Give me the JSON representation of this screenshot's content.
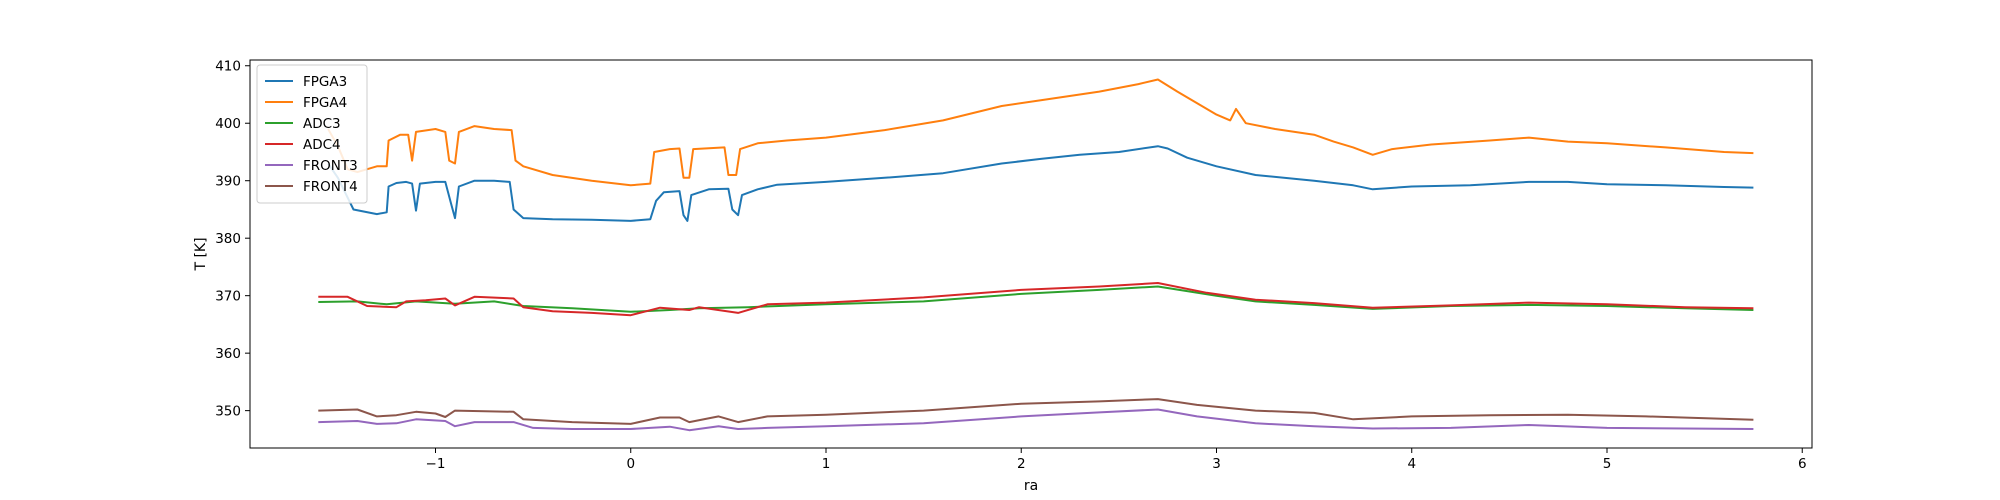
{
  "chart_data": {
    "type": "line",
    "title": "",
    "xlabel": "ra",
    "ylabel": "T [K]",
    "xlim": [
      -1.95,
      6.05
    ],
    "ylim": [
      343.5,
      411.0
    ],
    "xticks": [
      -1,
      0,
      1,
      2,
      3,
      4,
      5,
      6
    ],
    "xtick_labels": [
      "−1",
      "0",
      "1",
      "2",
      "3",
      "4",
      "5",
      "6"
    ],
    "yticks": [
      350,
      360,
      370,
      380,
      390,
      400,
      410
    ],
    "ytick_labels": [
      "350",
      "360",
      "370",
      "380",
      "390",
      "400",
      "410"
    ],
    "grid": false,
    "legend_position": "top-left",
    "series": [
      {
        "name": "FPGA3",
        "color": "#1f77b4",
        "points": [
          [
            -1.55,
            393.0
          ],
          [
            -1.5,
            390.5
          ],
          [
            -1.42,
            385.0
          ],
          [
            -1.3,
            384.2
          ],
          [
            -1.25,
            384.5
          ],
          [
            -1.24,
            389.0
          ],
          [
            -1.2,
            389.6
          ],
          [
            -1.15,
            389.8
          ],
          [
            -1.12,
            389.5
          ],
          [
            -1.1,
            384.8
          ],
          [
            -1.08,
            389.5
          ],
          [
            -1.0,
            389.8
          ],
          [
            -0.95,
            389.8
          ],
          [
            -0.92,
            386.0
          ],
          [
            -0.9,
            383.5
          ],
          [
            -0.88,
            389.0
          ],
          [
            -0.8,
            390.0
          ],
          [
            -0.7,
            390.0
          ],
          [
            -0.62,
            389.8
          ],
          [
            -0.6,
            385.0
          ],
          [
            -0.55,
            383.5
          ],
          [
            -0.4,
            383.3
          ],
          [
            -0.2,
            383.2
          ],
          [
            0.0,
            383.0
          ],
          [
            0.1,
            383.3
          ],
          [
            0.13,
            386.5
          ],
          [
            0.17,
            388.0
          ],
          [
            0.25,
            388.2
          ],
          [
            0.27,
            384.0
          ],
          [
            0.29,
            383.0
          ],
          [
            0.31,
            387.5
          ],
          [
            0.4,
            388.5
          ],
          [
            0.5,
            388.6
          ],
          [
            0.52,
            385.0
          ],
          [
            0.55,
            384.0
          ],
          [
            0.57,
            387.5
          ],
          [
            0.65,
            388.5
          ],
          [
            0.75,
            389.3
          ],
          [
            1.0,
            389.8
          ],
          [
            1.3,
            390.5
          ],
          [
            1.6,
            391.3
          ],
          [
            1.9,
            393.0
          ],
          [
            2.1,
            393.8
          ],
          [
            2.3,
            394.5
          ],
          [
            2.5,
            395.0
          ],
          [
            2.7,
            396.0
          ],
          [
            2.75,
            395.6
          ],
          [
            2.85,
            394.0
          ],
          [
            3.0,
            392.5
          ],
          [
            3.2,
            391.0
          ],
          [
            3.5,
            390.0
          ],
          [
            3.7,
            389.2
          ],
          [
            3.8,
            388.5
          ],
          [
            4.0,
            389.0
          ],
          [
            4.3,
            389.2
          ],
          [
            4.6,
            389.8
          ],
          [
            4.8,
            389.8
          ],
          [
            5.0,
            389.4
          ],
          [
            5.3,
            389.2
          ],
          [
            5.6,
            388.9
          ],
          [
            5.75,
            388.8
          ]
        ]
      },
      {
        "name": "FPGA4",
        "color": "#ff7f0e",
        "points": [
          [
            -1.55,
            399.0
          ],
          [
            -1.5,
            396.0
          ],
          [
            -1.45,
            392.0
          ],
          [
            -1.4,
            391.5
          ],
          [
            -1.3,
            392.5
          ],
          [
            -1.25,
            392.5
          ],
          [
            -1.24,
            397.0
          ],
          [
            -1.18,
            398.0
          ],
          [
            -1.14,
            398.0
          ],
          [
            -1.12,
            393.5
          ],
          [
            -1.1,
            398.5
          ],
          [
            -1.0,
            399.0
          ],
          [
            -0.95,
            398.5
          ],
          [
            -0.93,
            393.5
          ],
          [
            -0.9,
            393.0
          ],
          [
            -0.88,
            398.5
          ],
          [
            -0.8,
            399.5
          ],
          [
            -0.7,
            399.0
          ],
          [
            -0.61,
            398.8
          ],
          [
            -0.59,
            393.5
          ],
          [
            -0.55,
            392.5
          ],
          [
            -0.4,
            391.0
          ],
          [
            -0.2,
            390.0
          ],
          [
            0.0,
            389.2
          ],
          [
            0.1,
            389.5
          ],
          [
            0.12,
            395.0
          ],
          [
            0.2,
            395.5
          ],
          [
            0.25,
            395.6
          ],
          [
            0.27,
            390.5
          ],
          [
            0.3,
            390.5
          ],
          [
            0.32,
            395.5
          ],
          [
            0.48,
            395.8
          ],
          [
            0.5,
            391.0
          ],
          [
            0.54,
            391.0
          ],
          [
            0.56,
            395.5
          ],
          [
            0.65,
            396.5
          ],
          [
            0.8,
            397.0
          ],
          [
            1.0,
            397.5
          ],
          [
            1.3,
            398.8
          ],
          [
            1.6,
            400.5
          ],
          [
            1.9,
            403.0
          ],
          [
            2.1,
            404.0
          ],
          [
            2.4,
            405.5
          ],
          [
            2.6,
            406.8
          ],
          [
            2.7,
            407.6
          ],
          [
            2.8,
            405.5
          ],
          [
            3.0,
            401.5
          ],
          [
            3.07,
            400.5
          ],
          [
            3.1,
            402.5
          ],
          [
            3.15,
            400.0
          ],
          [
            3.3,
            399.0
          ],
          [
            3.5,
            398.0
          ],
          [
            3.6,
            396.8
          ],
          [
            3.7,
            395.8
          ],
          [
            3.8,
            394.5
          ],
          [
            3.9,
            395.5
          ],
          [
            4.1,
            396.3
          ],
          [
            4.4,
            397.0
          ],
          [
            4.6,
            397.5
          ],
          [
            4.8,
            396.8
          ],
          [
            5.0,
            396.5
          ],
          [
            5.3,
            395.8
          ],
          [
            5.6,
            395.0
          ],
          [
            5.75,
            394.8
          ]
        ]
      },
      {
        "name": "ADC3",
        "color": "#2ca02c",
        "points": [
          [
            -1.6,
            368.9
          ],
          [
            -1.4,
            369.0
          ],
          [
            -1.25,
            368.5
          ],
          [
            -1.1,
            369.0
          ],
          [
            -0.9,
            368.6
          ],
          [
            -0.7,
            369.0
          ],
          [
            -0.55,
            368.2
          ],
          [
            -0.3,
            367.8
          ],
          [
            0.0,
            367.2
          ],
          [
            0.2,
            367.5
          ],
          [
            0.35,
            367.8
          ],
          [
            0.6,
            368.0
          ],
          [
            1.0,
            368.5
          ],
          [
            1.5,
            369.0
          ],
          [
            2.0,
            370.3
          ],
          [
            2.4,
            371.0
          ],
          [
            2.7,
            371.6
          ],
          [
            3.0,
            370.0
          ],
          [
            3.2,
            369.0
          ],
          [
            3.5,
            368.4
          ],
          [
            3.8,
            367.7
          ],
          [
            4.2,
            368.2
          ],
          [
            4.6,
            368.4
          ],
          [
            5.0,
            368.2
          ],
          [
            5.4,
            367.8
          ],
          [
            5.75,
            367.5
          ]
        ]
      },
      {
        "name": "ADC4",
        "color": "#d62728",
        "points": [
          [
            -1.6,
            369.8
          ],
          [
            -1.45,
            369.8
          ],
          [
            -1.35,
            368.2
          ],
          [
            -1.2,
            368.0
          ],
          [
            -1.15,
            369.0
          ],
          [
            -1.05,
            369.2
          ],
          [
            -0.95,
            369.5
          ],
          [
            -0.9,
            368.3
          ],
          [
            -0.8,
            369.8
          ],
          [
            -0.6,
            369.5
          ],
          [
            -0.55,
            368.0
          ],
          [
            -0.4,
            367.3
          ],
          [
            -0.2,
            367.0
          ],
          [
            0.0,
            366.6
          ],
          [
            0.15,
            367.9
          ],
          [
            0.3,
            367.5
          ],
          [
            0.35,
            368.0
          ],
          [
            0.55,
            367.0
          ],
          [
            0.7,
            368.5
          ],
          [
            1.0,
            368.8
          ],
          [
            1.5,
            369.7
          ],
          [
            2.0,
            371.0
          ],
          [
            2.4,
            371.6
          ],
          [
            2.7,
            372.2
          ],
          [
            2.95,
            370.5
          ],
          [
            3.2,
            369.3
          ],
          [
            3.5,
            368.7
          ],
          [
            3.8,
            367.9
          ],
          [
            4.2,
            368.3
          ],
          [
            4.6,
            368.8
          ],
          [
            5.0,
            368.5
          ],
          [
            5.4,
            368.0
          ],
          [
            5.75,
            367.8
          ]
        ]
      },
      {
        "name": "FRONT3",
        "color": "#9467bd",
        "points": [
          [
            -1.6,
            348.0
          ],
          [
            -1.4,
            348.2
          ],
          [
            -1.3,
            347.7
          ],
          [
            -1.2,
            347.8
          ],
          [
            -1.1,
            348.5
          ],
          [
            -0.95,
            348.2
          ],
          [
            -0.9,
            347.3
          ],
          [
            -0.8,
            348.0
          ],
          [
            -0.6,
            348.0
          ],
          [
            -0.5,
            347.0
          ],
          [
            -0.3,
            346.8
          ],
          [
            0.0,
            346.8
          ],
          [
            0.2,
            347.2
          ],
          [
            0.3,
            346.6
          ],
          [
            0.45,
            347.3
          ],
          [
            0.55,
            346.8
          ],
          [
            0.7,
            347.0
          ],
          [
            1.0,
            347.3
          ],
          [
            1.5,
            347.8
          ],
          [
            2.0,
            349.0
          ],
          [
            2.4,
            349.7
          ],
          [
            2.7,
            350.2
          ],
          [
            2.9,
            349.0
          ],
          [
            3.2,
            347.8
          ],
          [
            3.5,
            347.3
          ],
          [
            3.8,
            346.9
          ],
          [
            4.2,
            347.0
          ],
          [
            4.6,
            347.5
          ],
          [
            5.0,
            347.0
          ],
          [
            5.4,
            346.9
          ],
          [
            5.75,
            346.8
          ]
        ]
      },
      {
        "name": "FRONT4",
        "color": "#8c564b",
        "points": [
          [
            -1.6,
            350.0
          ],
          [
            -1.4,
            350.2
          ],
          [
            -1.3,
            349.0
          ],
          [
            -1.2,
            349.2
          ],
          [
            -1.1,
            349.8
          ],
          [
            -1.0,
            349.5
          ],
          [
            -0.95,
            348.9
          ],
          [
            -0.9,
            350.0
          ],
          [
            -0.6,
            349.8
          ],
          [
            -0.55,
            348.5
          ],
          [
            -0.3,
            348.0
          ],
          [
            0.0,
            347.7
          ],
          [
            0.15,
            348.8
          ],
          [
            0.25,
            348.8
          ],
          [
            0.3,
            348.0
          ],
          [
            0.45,
            349.0
          ],
          [
            0.55,
            348.0
          ],
          [
            0.7,
            349.0
          ],
          [
            1.0,
            349.3
          ],
          [
            1.5,
            350.0
          ],
          [
            2.0,
            351.2
          ],
          [
            2.4,
            351.6
          ],
          [
            2.7,
            352.0
          ],
          [
            2.9,
            351.0
          ],
          [
            3.2,
            350.0
          ],
          [
            3.5,
            349.6
          ],
          [
            3.7,
            348.5
          ],
          [
            4.0,
            349.0
          ],
          [
            4.4,
            349.2
          ],
          [
            4.8,
            349.3
          ],
          [
            5.2,
            349.0
          ],
          [
            5.75,
            348.4
          ]
        ]
      }
    ]
  }
}
